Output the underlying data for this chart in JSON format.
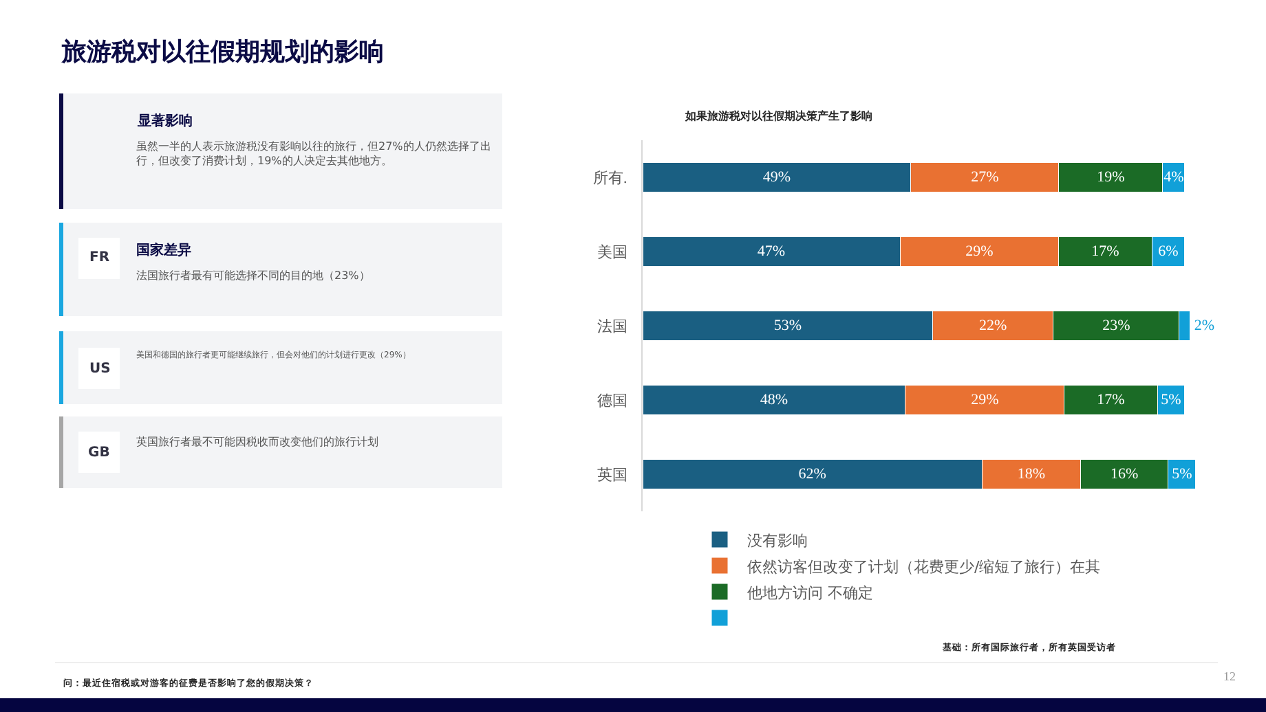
{
  "chart_data": {
    "type": "bar",
    "orientation": "horizontal",
    "stacked": true,
    "legend": "bottom",
    "title": "旅游税对以往假期规划的影响",
    "subtitle": "如果旅游税对以往假期决策产生了影响",
    "categories": [
      "所有.",
      "美国",
      "法国",
      "德国",
      "英国"
    ],
    "series": [
      {
        "name": "没有影响",
        "color": "#1a5f82",
        "values": [
          49,
          47,
          53,
          48,
          62
        ],
        "value_labels": [
          "49%",
          "47%",
          "53%",
          "48%",
          "62%"
        ]
      },
      {
        "name": "依然访客但改变了计划（花费更少/缩短了旅行）在其",
        "color": "#e97132",
        "values": [
          27,
          29,
          22,
          29,
          18
        ],
        "value_labels": [
          "27%",
          "29%",
          "22%",
          "29%",
          "18%"
        ]
      },
      {
        "name": "他地方访问 不确定",
        "color": "#1b6b26",
        "values": [
          19,
          17,
          23,
          17,
          16
        ],
        "value_labels": [
          "19%",
          "17%",
          "23%",
          "17%",
          "16%"
        ]
      },
      {
        "color": "#11a0d8",
        "values": [
          4,
          6,
          2,
          5,
          5
        ],
        "value_labels": [
          "4%",
          "6%",
          "2%",
          "5%",
          "5%"
        ]
      }
    ],
    "annotations": [
      "显著影响",
      "虽然一半的人表示旅游税没有影响以往的旅行，但27%的人仍然选择了出行，但改变了消费计划，19%的人决定去其他地方。",
      "FR",
      "国家差异",
      "法国旅行者最有可能选择不同的目的地（23%）",
      "US",
      "美国和德国的旅行者更可能继续旅行，但会对他们的计划进行更改（29%）",
      "GB",
      "英国旅行者最不可能因税收而改变他们的旅行计划",
      "基础：所有国际旅行者，所有英国受访者",
      "问：最近住宿税或对游客的征费是否影响了您的假期决策？",
      "12"
    ]
  }
}
